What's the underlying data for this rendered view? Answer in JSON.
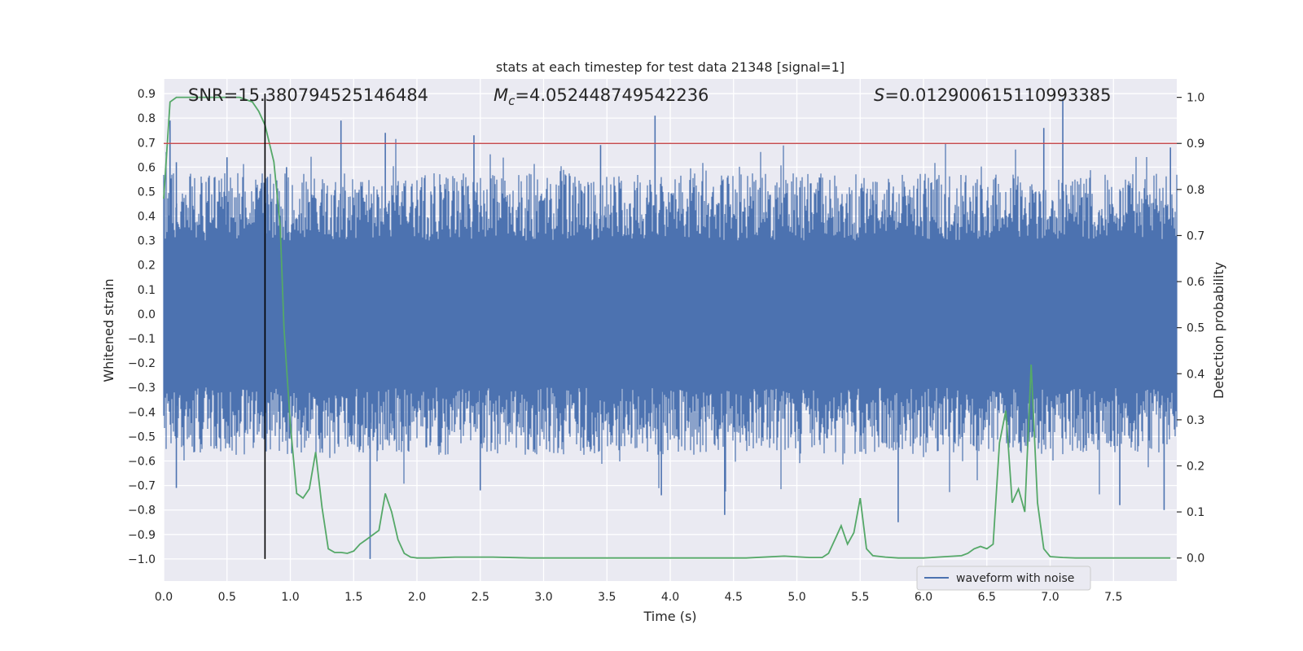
{
  "chart_data": {
    "type": "line",
    "title": "stats at each timestep for test data 21348 [signal=1]",
    "xlabel": "Time (s)",
    "ylabel": "Whitened strain",
    "y2label": "Detection probability",
    "xlim": [
      0.0,
      8.0
    ],
    "ylim": [
      -1.09,
      0.96
    ],
    "y2lim": [
      -0.05,
      1.04
    ],
    "xticks": [
      "0.0",
      "0.5",
      "1.0",
      "1.5",
      "2.0",
      "2.5",
      "3.0",
      "3.5",
      "4.0",
      "4.5",
      "5.0",
      "5.5",
      "6.0",
      "6.5",
      "7.0",
      "7.5"
    ],
    "yticks": [
      "0.9",
      "0.8",
      "0.7",
      "0.6",
      "0.5",
      "0.4",
      "0.3",
      "0.2",
      "0.1",
      "0.0",
      "−0.1",
      "−0.2",
      "−0.3",
      "−0.4",
      "−0.5",
      "−0.6",
      "−0.7",
      "−0.8",
      "−0.9",
      "−1.0"
    ],
    "y2ticks": [
      "1.0",
      "0.9",
      "0.8",
      "0.7",
      "0.6",
      "0.5",
      "0.4",
      "0.3",
      "0.2",
      "0.1",
      "0.0"
    ],
    "grid": true,
    "legend": {
      "placement": "lower right",
      "label": "waveform with noise"
    },
    "annotations": {
      "snr": "SNR=15.380794525146484",
      "mc_symbol": "M",
      "mc_sub": "c",
      "mc_value": "=4.052448749542236",
      "s_symbol": "S",
      "s_value": "=0.012900615110993385"
    },
    "threshold": {
      "y2": 0.9,
      "color": "#c44e52"
    },
    "event_marker": {
      "x": 0.8,
      "y_from": -1.0,
      "y_to": 0.9,
      "color": "#000000"
    },
    "colors": {
      "waveform": "#4c72b0",
      "probability": "#55a868",
      "axes_bg": "#eaeaf2",
      "grid": "#ffffff"
    },
    "waveform_series": {
      "name": "waveform with noise",
      "envelope_upper_typical": 0.5,
      "envelope_lower_typical": -0.5,
      "spikes": [
        {
          "x": 0.05,
          "y": 0.79
        },
        {
          "x": 0.1,
          "y": 0.62
        },
        {
          "x": 0.1,
          "y": -0.71
        },
        {
          "x": 0.5,
          "y": 0.64
        },
        {
          "x": 0.82,
          "y": 0.56
        },
        {
          "x": 0.97,
          "y": 0.6
        },
        {
          "x": 1.4,
          "y": 0.79
        },
        {
          "x": 1.63,
          "y": -1.0
        },
        {
          "x": 1.75,
          "y": 0.74
        },
        {
          "x": 2.45,
          "y": 0.73
        },
        {
          "x": 2.5,
          "y": -0.72
        },
        {
          "x": 3.45,
          "y": 0.69
        },
        {
          "x": 3.88,
          "y": 0.81
        },
        {
          "x": 3.93,
          "y": -0.74
        },
        {
          "x": 4.43,
          "y": -0.82
        },
        {
          "x": 5.8,
          "y": -0.85
        },
        {
          "x": 6.95,
          "y": 0.76
        },
        {
          "x": 7.1,
          "y": 0.88
        },
        {
          "x": 7.55,
          "y": -0.78
        },
        {
          "x": 7.9,
          "y": -0.8
        },
        {
          "x": 7.95,
          "y": 0.68
        }
      ]
    },
    "probability_series": {
      "name": "",
      "x": [
        0.0,
        0.05,
        0.1,
        0.15,
        0.2,
        0.3,
        0.4,
        0.5,
        0.6,
        0.7,
        0.75,
        0.8,
        0.87,
        0.92,
        0.95,
        1.0,
        1.05,
        1.1,
        1.15,
        1.2,
        1.25,
        1.3,
        1.35,
        1.4,
        1.45,
        1.5,
        1.55,
        1.6,
        1.65,
        1.7,
        1.75,
        1.8,
        1.85,
        1.9,
        1.95,
        2.0,
        2.1,
        2.3,
        2.6,
        2.9,
        3.1,
        3.5,
        3.8,
        4.1,
        4.3,
        4.6,
        4.9,
        5.1,
        5.2,
        5.25,
        5.3,
        5.35,
        5.4,
        5.45,
        5.5,
        5.55,
        5.6,
        5.7,
        5.8,
        6.0,
        6.3,
        6.35,
        6.4,
        6.45,
        6.5,
        6.55,
        6.6,
        6.65,
        6.7,
        6.75,
        6.8,
        6.85,
        6.9,
        6.95,
        7.0,
        7.1,
        7.2,
        7.4,
        7.6,
        7.8,
        7.95
      ],
      "y": [
        0.78,
        0.99,
        1.0,
        1.0,
        1.0,
        1.0,
        1.0,
        1.0,
        1.0,
        0.99,
        0.97,
        0.94,
        0.86,
        0.72,
        0.5,
        0.29,
        0.14,
        0.13,
        0.15,
        0.23,
        0.11,
        0.02,
        0.012,
        0.012,
        0.01,
        0.015,
        0.03,
        0.04,
        0.05,
        0.06,
        0.14,
        0.1,
        0.04,
        0.01,
        0.002,
        0.0,
        0.0,
        0.002,
        0.002,
        0.0,
        0.0,
        0.0,
        0.0,
        0.0,
        0.0,
        0.0,
        0.004,
        0.001,
        0.001,
        0.01,
        0.04,
        0.07,
        0.03,
        0.055,
        0.13,
        0.02,
        0.005,
        0.002,
        0.0,
        0.0,
        0.005,
        0.01,
        0.02,
        0.025,
        0.02,
        0.03,
        0.25,
        0.32,
        0.12,
        0.15,
        0.1,
        0.42,
        0.12,
        0.02,
        0.003,
        0.001,
        0.0,
        0.0,
        0.0,
        0.0,
        0.0
      ]
    }
  }
}
